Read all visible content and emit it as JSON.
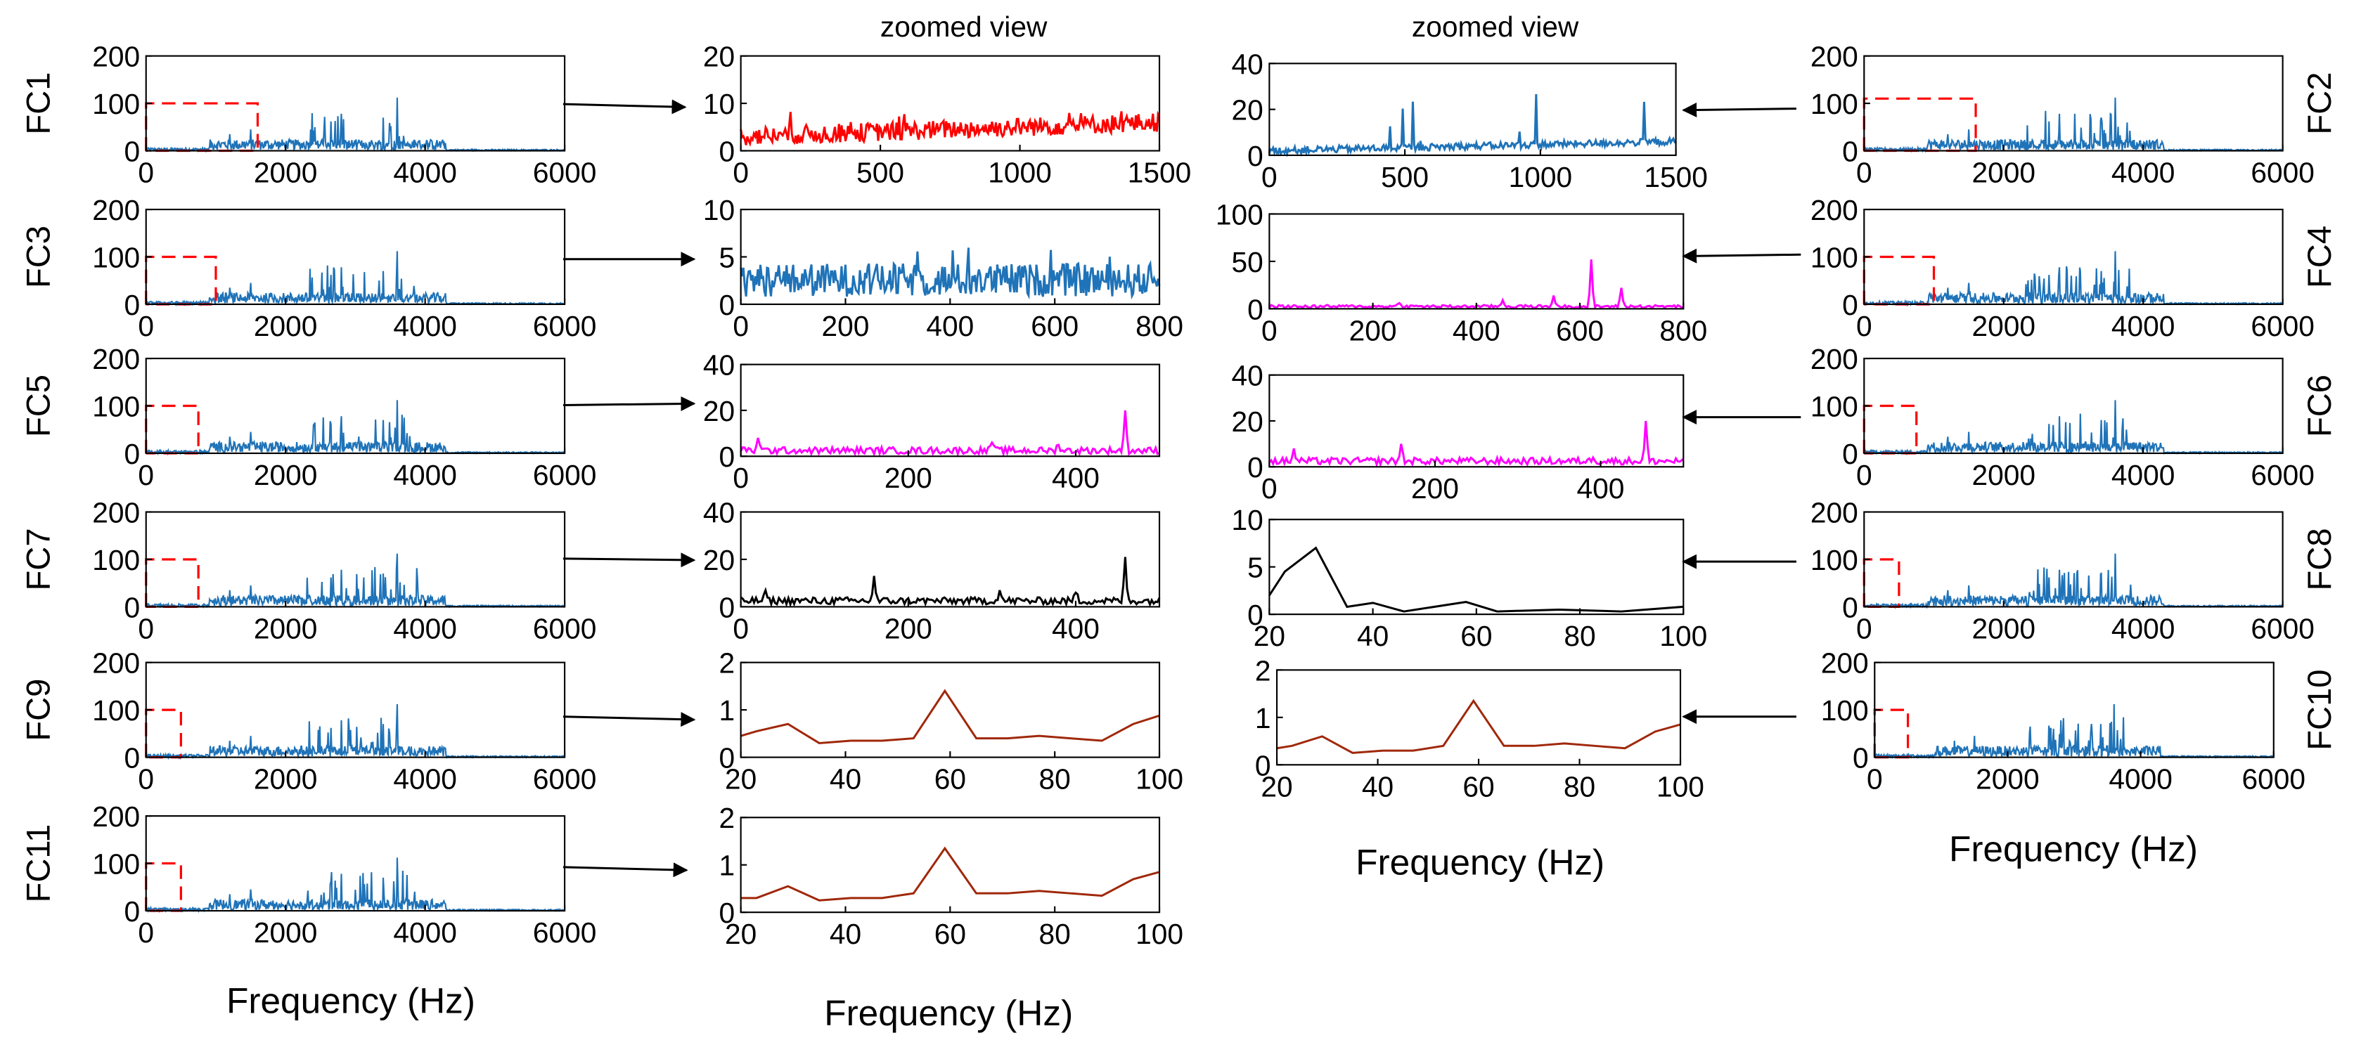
{
  "figure": {
    "zoom_header": "zoomed view",
    "freq_label": "Frequency (Hz)"
  },
  "colors": {
    "spectrum": "#1f73b8",
    "zoom_box": "#ff0000",
    "red": "#ff0000",
    "blue": "#1f73b8",
    "magenta": "#ff00ff",
    "black": "#000000",
    "brown": "#a0280a",
    "axis": "#000000"
  },
  "chart_data": [
    {
      "id": "fc1",
      "type": "line",
      "label": "FC1",
      "xlim": [
        0,
        6000
      ],
      "ylim": [
        0,
        200
      ],
      "xticks": [
        0,
        2000,
        4000,
        6000
      ],
      "yticks": [
        0,
        100,
        200
      ],
      "zoom_box": {
        "x": [
          0,
          1600
        ],
        "y": [
          0,
          100
        ]
      },
      "series_color": "spectrum",
      "series": [
        {
          "name": "FC1 spectrum",
          "kind": "spectrum"
        }
      ]
    },
    {
      "id": "fc2",
      "type": "line",
      "label": "FC2",
      "xlim": [
        0,
        6000
      ],
      "ylim": [
        0,
        200
      ],
      "xticks": [
        0,
        2000,
        4000,
        6000
      ],
      "yticks": [
        0,
        100,
        200
      ],
      "zoom_box": {
        "x": [
          0,
          1600
        ],
        "y": [
          0,
          110
        ]
      },
      "series_color": "spectrum",
      "series": [
        {
          "name": "FC2 spectrum",
          "kind": "spectrum"
        }
      ]
    },
    {
      "id": "fc3",
      "type": "line",
      "label": "FC3",
      "xlim": [
        0,
        6000
      ],
      "ylim": [
        0,
        200
      ],
      "xticks": [
        0,
        2000,
        4000,
        6000
      ],
      "yticks": [
        0,
        100,
        200
      ],
      "zoom_box": {
        "x": [
          0,
          1000
        ],
        "y": [
          0,
          100
        ]
      },
      "series_color": "spectrum",
      "series": [
        {
          "name": "FC3 spectrum",
          "kind": "spectrum"
        }
      ]
    },
    {
      "id": "fc4",
      "type": "line",
      "label": "FC4",
      "xlim": [
        0,
        6000
      ],
      "ylim": [
        0,
        200
      ],
      "xticks": [
        0,
        2000,
        4000,
        6000
      ],
      "yticks": [
        0,
        100,
        200
      ],
      "zoom_box": {
        "x": [
          0,
          1000
        ],
        "y": [
          0,
          100
        ]
      },
      "series_color": "spectrum",
      "series": [
        {
          "name": "FC4 spectrum",
          "kind": "spectrum"
        }
      ]
    },
    {
      "id": "fc5",
      "type": "line",
      "label": "FC5",
      "xlim": [
        0,
        6000
      ],
      "ylim": [
        0,
        200
      ],
      "xticks": [
        0,
        2000,
        4000,
        6000
      ],
      "yticks": [
        0,
        100,
        200
      ],
      "zoom_box": {
        "x": [
          0,
          750
        ],
        "y": [
          0,
          100
        ]
      },
      "series_color": "spectrum",
      "series": [
        {
          "name": "FC5 spectrum",
          "kind": "spectrum"
        }
      ]
    },
    {
      "id": "fc6",
      "type": "line",
      "label": "FC6",
      "xlim": [
        0,
        6000
      ],
      "ylim": [
        0,
        200
      ],
      "xticks": [
        0,
        2000,
        4000,
        6000
      ],
      "yticks": [
        0,
        100,
        200
      ],
      "zoom_box": {
        "x": [
          0,
          750
        ],
        "y": [
          0,
          100
        ]
      },
      "series_color": "spectrum",
      "series": [
        {
          "name": "FC6 spectrum",
          "kind": "spectrum"
        }
      ]
    },
    {
      "id": "fc7",
      "type": "line",
      "label": "FC7",
      "xlim": [
        0,
        6000
      ],
      "ylim": [
        0,
        200
      ],
      "xticks": [
        0,
        2000,
        4000,
        6000
      ],
      "yticks": [
        0,
        100,
        200
      ],
      "zoom_box": {
        "x": [
          0,
          750
        ],
        "y": [
          0,
          100
        ]
      },
      "series_color": "spectrum",
      "series": [
        {
          "name": "FC7 spectrum",
          "kind": "spectrum"
        }
      ]
    },
    {
      "id": "fc8",
      "type": "line",
      "label": "FC8",
      "xlim": [
        0,
        6000
      ],
      "ylim": [
        0,
        200
      ],
      "xticks": [
        0,
        2000,
        4000,
        6000
      ],
      "yticks": [
        0,
        100,
        200
      ],
      "zoom_box": {
        "x": [
          0,
          500
        ],
        "y": [
          0,
          100
        ]
      },
      "series_color": "spectrum",
      "series": [
        {
          "name": "FC8 spectrum",
          "kind": "spectrum"
        }
      ]
    },
    {
      "id": "fc9",
      "type": "line",
      "label": "FC9",
      "xlim": [
        0,
        6000
      ],
      "ylim": [
        0,
        200
      ],
      "xticks": [
        0,
        2000,
        4000,
        6000
      ],
      "yticks": [
        0,
        100,
        200
      ],
      "zoom_box": {
        "x": [
          0,
          500
        ],
        "y": [
          0,
          100
        ]
      },
      "series_color": "spectrum",
      "series": [
        {
          "name": "FC9 spectrum",
          "kind": "spectrum"
        }
      ]
    },
    {
      "id": "fc10",
      "type": "line",
      "label": "FC10",
      "xlim": [
        0,
        6000
      ],
      "ylim": [
        0,
        200
      ],
      "xticks": [
        0,
        2000,
        4000,
        6000
      ],
      "yticks": [
        0,
        100,
        200
      ],
      "zoom_box": {
        "x": [
          0,
          500
        ],
        "y": [
          0,
          100
        ]
      },
      "series_color": "spectrum",
      "series": [
        {
          "name": "FC10 spectrum",
          "kind": "spectrum"
        }
      ]
    },
    {
      "id": "fc11",
      "type": "line",
      "label": "FC11",
      "xlim": [
        0,
        6000
      ],
      "ylim": [
        0,
        200
      ],
      "xticks": [
        0,
        2000,
        4000,
        6000
      ],
      "yticks": [
        0,
        100,
        200
      ],
      "zoom_box": {
        "x": [
          0,
          500
        ],
        "y": [
          0,
          100
        ]
      },
      "series_color": "spectrum",
      "series": [
        {
          "name": "FC11 spectrum",
          "kind": "spectrum"
        }
      ]
    },
    {
      "id": "z1",
      "type": "line",
      "label": "FC1 zoomed view",
      "xlim": [
        0,
        1500
      ],
      "ylim": [
        0,
        20
      ],
      "xticks": [
        0,
        500,
        1000,
        1500
      ],
      "yticks": [
        0,
        10,
        20
      ],
      "series_color": "red",
      "series": [
        {
          "name": "FC1 zoom",
          "kind": "noise"
        }
      ]
    },
    {
      "id": "z2",
      "type": "line",
      "label": "FC2 zoomed view",
      "xlim": [
        0,
        1500
      ],
      "ylim": [
        0,
        40
      ],
      "xticks": [
        0,
        500,
        1000,
        1500
      ],
      "yticks": [
        0,
        20,
        40
      ],
      "series_color": "blue",
      "series": [
        {
          "name": "FC2 zoom",
          "kind": "noise2"
        }
      ]
    },
    {
      "id": "z3",
      "type": "line",
      "label": "FC3 zoomed view",
      "xlim": [
        0,
        800
      ],
      "ylim": [
        0,
        10
      ],
      "xticks": [
        0,
        200,
        400,
        600,
        800
      ],
      "yticks": [
        0,
        5,
        10
      ],
      "series_color": "blue",
      "series": [
        {
          "name": "FC3 zoom",
          "kind": "noise3"
        }
      ]
    },
    {
      "id": "z4",
      "type": "line",
      "label": "FC4 zoomed view",
      "xlim": [
        0,
        800
      ],
      "ylim": [
        0,
        100
      ],
      "xticks": [
        0,
        200,
        400,
        600,
        800
      ],
      "yticks": [
        0,
        50,
        100
      ],
      "series_color": "magenta",
      "series": [
        {
          "name": "FC4 zoom",
          "kind": "peaks",
          "peaks": [
            [
              620,
              52
            ],
            [
              680,
              22
            ],
            [
              450,
              9
            ],
            [
              550,
              14
            ],
            [
              250,
              6
            ]
          ]
        }
      ]
    },
    {
      "id": "z5",
      "type": "line",
      "label": "FC5 zoomed view",
      "xlim": [
        0,
        500
      ],
      "ylim": [
        0,
        40
      ],
      "xticks": [
        0,
        200,
        400
      ],
      "yticks": [
        0,
        20,
        40
      ],
      "series_color": "magenta",
      "series": [
        {
          "name": "FC5 zoom",
          "kind": "peaks",
          "peaks": [
            [
              460,
              20
            ],
            [
              20,
              8
            ],
            [
              300,
              6
            ],
            [
              380,
              5
            ]
          ]
        }
      ]
    },
    {
      "id": "z6",
      "type": "line",
      "label": "FC6 zoomed view",
      "xlim": [
        0,
        500
      ],
      "ylim": [
        0,
        40
      ],
      "xticks": [
        0,
        200,
        400
      ],
      "yticks": [
        0,
        20,
        40
      ],
      "series_color": "magenta",
      "series": [
        {
          "name": "FC6 zoom",
          "kind": "peaks",
          "peaks": [
            [
              160,
              10
            ],
            [
              455,
              20
            ],
            [
              30,
              8
            ],
            [
              390,
              4
            ]
          ]
        }
      ]
    },
    {
      "id": "z7",
      "type": "line",
      "label": "FC7 zoomed view",
      "xlim": [
        0,
        500
      ],
      "ylim": [
        0,
        40
      ],
      "xticks": [
        0,
        200,
        400
      ],
      "yticks": [
        0,
        20,
        40
      ],
      "series_color": "black",
      "series": [
        {
          "name": "FC7 zoom",
          "kind": "peaks",
          "peaks": [
            [
              160,
              13
            ],
            [
              460,
              21
            ],
            [
              30,
              7
            ],
            [
              310,
              7
            ],
            [
              400,
              6
            ]
          ]
        }
      ]
    },
    {
      "id": "z8",
      "type": "line",
      "label": "FC8 zoomed view",
      "xlim": [
        20,
        100
      ],
      "ylim": [
        0,
        10
      ],
      "xticks": [
        20,
        40,
        60,
        80,
        100
      ],
      "yticks": [
        0,
        5,
        10
      ],
      "series_color": "black",
      "series": [
        {
          "name": "FC8 zoom",
          "x": [
            20,
            23,
            29,
            35,
            40,
            46,
            58,
            64,
            76,
            88,
            100
          ],
          "y": [
            2,
            4.5,
            7,
            0.8,
            1.2,
            0.3,
            1.3,
            0.3,
            0.5,
            0.3,
            0.8
          ]
        }
      ]
    },
    {
      "id": "z9",
      "type": "line",
      "label": "FC9 zoomed view",
      "xlim": [
        20,
        100
      ],
      "ylim": [
        0,
        2
      ],
      "xticks": [
        20,
        40,
        60,
        80,
        100
      ],
      "yticks": [
        0,
        1,
        2
      ],
      "series_color": "brown",
      "series": [
        {
          "name": "FC9 zoom",
          "x": [
            20,
            23,
            29,
            35,
            41,
            47,
            53,
            59,
            65,
            71,
            77,
            83,
            89,
            95,
            100
          ],
          "y": [
            0.45,
            0.55,
            0.7,
            0.3,
            0.35,
            0.35,
            0.4,
            1.4,
            0.4,
            0.4,
            0.45,
            0.4,
            0.35,
            0.7,
            0.88
          ]
        }
      ]
    },
    {
      "id": "z10",
      "type": "line",
      "label": "FC10 zoomed view",
      "xlim": [
        20,
        100
      ],
      "ylim": [
        0,
        2
      ],
      "xticks": [
        20,
        40,
        60,
        80,
        100
      ],
      "yticks": [
        0,
        1,
        2
      ],
      "series_color": "brown",
      "series": [
        {
          "name": "FC10 zoom",
          "x": [
            20,
            23,
            29,
            35,
            41,
            47,
            53,
            59,
            65,
            71,
            77,
            83,
            89,
            95,
            100
          ],
          "y": [
            0.35,
            0.4,
            0.6,
            0.25,
            0.3,
            0.3,
            0.4,
            1.35,
            0.4,
            0.4,
            0.45,
            0.4,
            0.35,
            0.7,
            0.85
          ]
        }
      ]
    },
    {
      "id": "z11",
      "type": "line",
      "label": "FC11 zoomed view",
      "xlim": [
        20,
        100
      ],
      "ylim": [
        0,
        2
      ],
      "xticks": [
        20,
        40,
        60,
        80,
        100
      ],
      "yticks": [
        0,
        1,
        2
      ],
      "series_color": "brown",
      "series": [
        {
          "name": "FC11 zoom",
          "x": [
            20,
            23,
            29,
            35,
            41,
            47,
            53,
            59,
            65,
            71,
            77,
            83,
            89,
            95,
            100
          ],
          "y": [
            0.3,
            0.3,
            0.55,
            0.25,
            0.3,
            0.3,
            0.4,
            1.35,
            0.4,
            0.4,
            0.45,
            0.4,
            0.35,
            0.7,
            0.85
          ]
        }
      ]
    }
  ]
}
